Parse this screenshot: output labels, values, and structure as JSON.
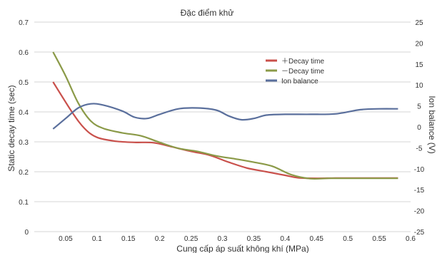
{
  "chart_data": {
    "type": "line",
    "title": "Đặc điểm khử",
    "xlabel": "Cung cấp áp suất không khí (MPa)",
    "ylabel": "Static decay time (sec)",
    "y2label": "Ion balance (V)",
    "xticks": [
      "0.05",
      "0.1",
      "0.15",
      "0.2",
      "0.25",
      "0.3",
      "0.35",
      "0.4",
      "0.45",
      "0.5",
      "0.55",
      "0.6"
    ],
    "yticks": [
      "0",
      "0.1",
      "0.2",
      "0.3",
      "0.4",
      "0.5",
      "0.6",
      "0.7"
    ],
    "y2ticks": [
      "-25",
      "-20",
      "-15",
      "-10",
      "-5",
      "0",
      "5",
      "10",
      "15",
      "20",
      "25"
    ],
    "xlim": [
      0,
      0.6
    ],
    "ylim": [
      0,
      0.7
    ],
    "y2lim": [
      -25,
      25
    ],
    "grid": true,
    "legend_position": "top-right",
    "series": [
      {
        "name": "＋Decay time",
        "axis": "left",
        "color": "#c9504b",
        "x": [
          0.03,
          0.06,
          0.08,
          0.1,
          0.13,
          0.16,
          0.19,
          0.22,
          0.25,
          0.28,
          0.31,
          0.34,
          0.37,
          0.4,
          0.42,
          0.45,
          0.48,
          0.52,
          0.55,
          0.58
        ],
        "y": [
          0.5,
          0.4,
          0.345,
          0.315,
          0.302,
          0.298,
          0.297,
          0.283,
          0.268,
          0.255,
          0.232,
          0.212,
          0.2,
          0.188,
          0.18,
          0.178,
          0.179,
          0.179,
          0.179,
          0.179
        ]
      },
      {
        "name": "－Decay time",
        "axis": "left",
        "color": "#8b9a48",
        "x": [
          0.03,
          0.05,
          0.07,
          0.09,
          0.11,
          0.14,
          0.17,
          0.2,
          0.23,
          0.26,
          0.29,
          0.32,
          0.35,
          0.38,
          0.41,
          0.44,
          0.47,
          0.5,
          0.54,
          0.58
        ],
        "y": [
          0.6,
          0.52,
          0.43,
          0.37,
          0.345,
          0.33,
          0.32,
          0.298,
          0.278,
          0.268,
          0.253,
          0.243,
          0.232,
          0.218,
          0.19,
          0.177,
          0.178,
          0.178,
          0.178,
          0.178
        ]
      },
      {
        "name": "Ion balance",
        "axis": "right",
        "color": "#5a6f9c",
        "x": [
          0.03,
          0.05,
          0.07,
          0.09,
          0.11,
          0.14,
          0.16,
          0.18,
          0.2,
          0.23,
          0.26,
          0.29,
          0.31,
          0.33,
          0.35,
          0.37,
          0.4,
          0.44,
          0.48,
          0.52,
          0.55,
          0.58
        ],
        "y": [
          -0.5,
          2.0,
          4.5,
          5.5,
          5.2,
          3.8,
          2.3,
          2.0,
          3.0,
          4.3,
          4.5,
          4.0,
          2.6,
          1.7,
          2.0,
          2.8,
          3.0,
          3.0,
          3.1,
          4.1,
          4.3,
          4.3
        ]
      }
    ]
  }
}
